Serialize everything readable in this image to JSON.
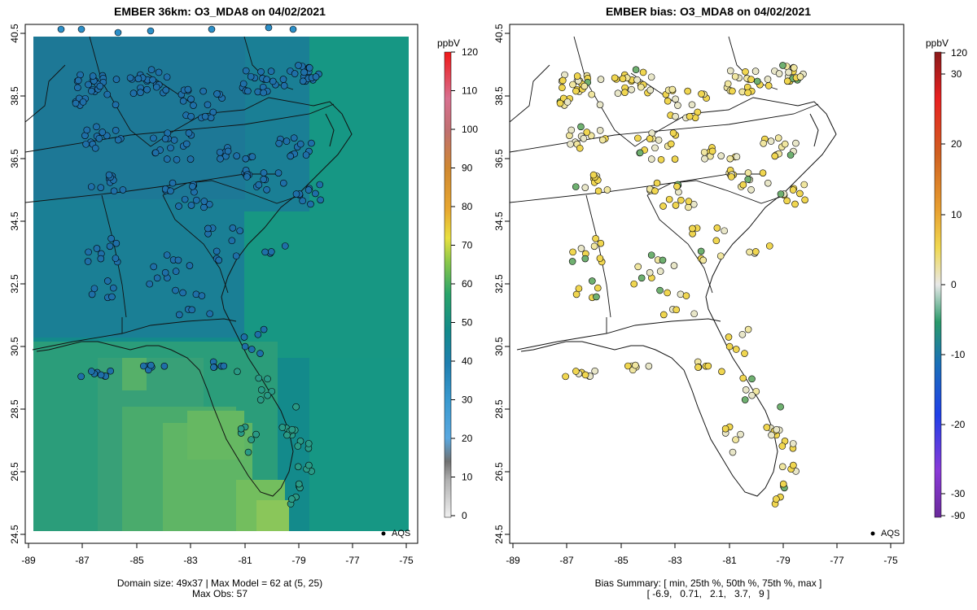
{
  "left_panel": {
    "title": "EMBER 36km: O3_MDA8 on 04/02/2021",
    "colorbar_unit": "ppbV",
    "colorbar_ticks": [
      "0",
      "10",
      "20",
      "30",
      "40",
      "50",
      "60",
      "70",
      "80",
      "90",
      "100",
      "110",
      "120"
    ],
    "legend_label": "AQS",
    "footer_line1": "Domain size: 49x37 | Max Model = 62 at (5, 25)",
    "footer_line2": "Max Obs: 57"
  },
  "right_panel": {
    "title": "EMBER bias: O3_MDA8 on 04/02/2021",
    "colorbar_unit": "ppbV",
    "colorbar_ticks": [
      "-90",
      "-30",
      "-20",
      "-10",
      "0",
      "10",
      "20",
      "30",
      "120"
    ],
    "legend_label": "AQS",
    "footer_line1": "Bias Summary: [ min, 25th %, 50th %, 75th %, max ]",
    "footer_line2": "[ -6.9,   0.71,   2.1,   3.7,   9 ]"
  },
  "axes": {
    "x_ticks": [
      "-89",
      "-87",
      "-85",
      "-83",
      "-81",
      "-79",
      "-77",
      "-75"
    ],
    "y_ticks": [
      "24.5",
      "26.5",
      "28.5",
      "30.5",
      "32.5",
      "34.5",
      "36.5",
      "38.5",
      "40.5"
    ]
  },
  "colors": {
    "model_dominant": "#1a8c8c",
    "model_south": "#3aa07a",
    "model_max": "#7fc35a",
    "obs_marker": "#2c7fb8",
    "bias_positive": "#f2e060",
    "bias_negative": "#5fa86a"
  }
}
